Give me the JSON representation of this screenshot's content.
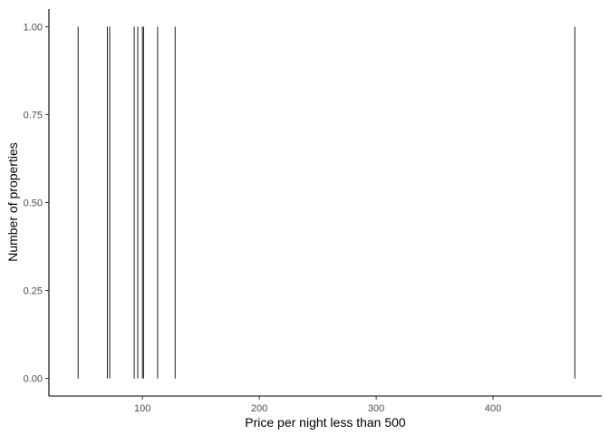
{
  "chart_data": {
    "type": "bar",
    "title": "",
    "xlabel": "Price per night less than 500",
    "ylabel": "Number of properties",
    "x": [
      45,
      70,
      72,
      93,
      96,
      100,
      101,
      113,
      128,
      470
    ],
    "values": [
      1,
      1,
      1,
      1,
      1,
      1,
      1,
      1,
      1,
      1
    ],
    "xlim": [
      20,
      493
    ],
    "ylim": [
      -0.05,
      1.05
    ],
    "x_ticks": [
      100,
      200,
      300,
      400
    ],
    "y_ticks": [
      0,
      0.25,
      0.5,
      0.75,
      1
    ],
    "x_tick_labels": [
      "100",
      "200",
      "300",
      "400"
    ],
    "y_tick_labels": [
      "0.00",
      "0.25",
      "0.50",
      "0.75",
      "1.00"
    ],
    "grid": false,
    "colors": {
      "bar": "#333333",
      "axis": "#000000",
      "tick_label": "#4d4d4d",
      "background": "#ffffff"
    }
  }
}
